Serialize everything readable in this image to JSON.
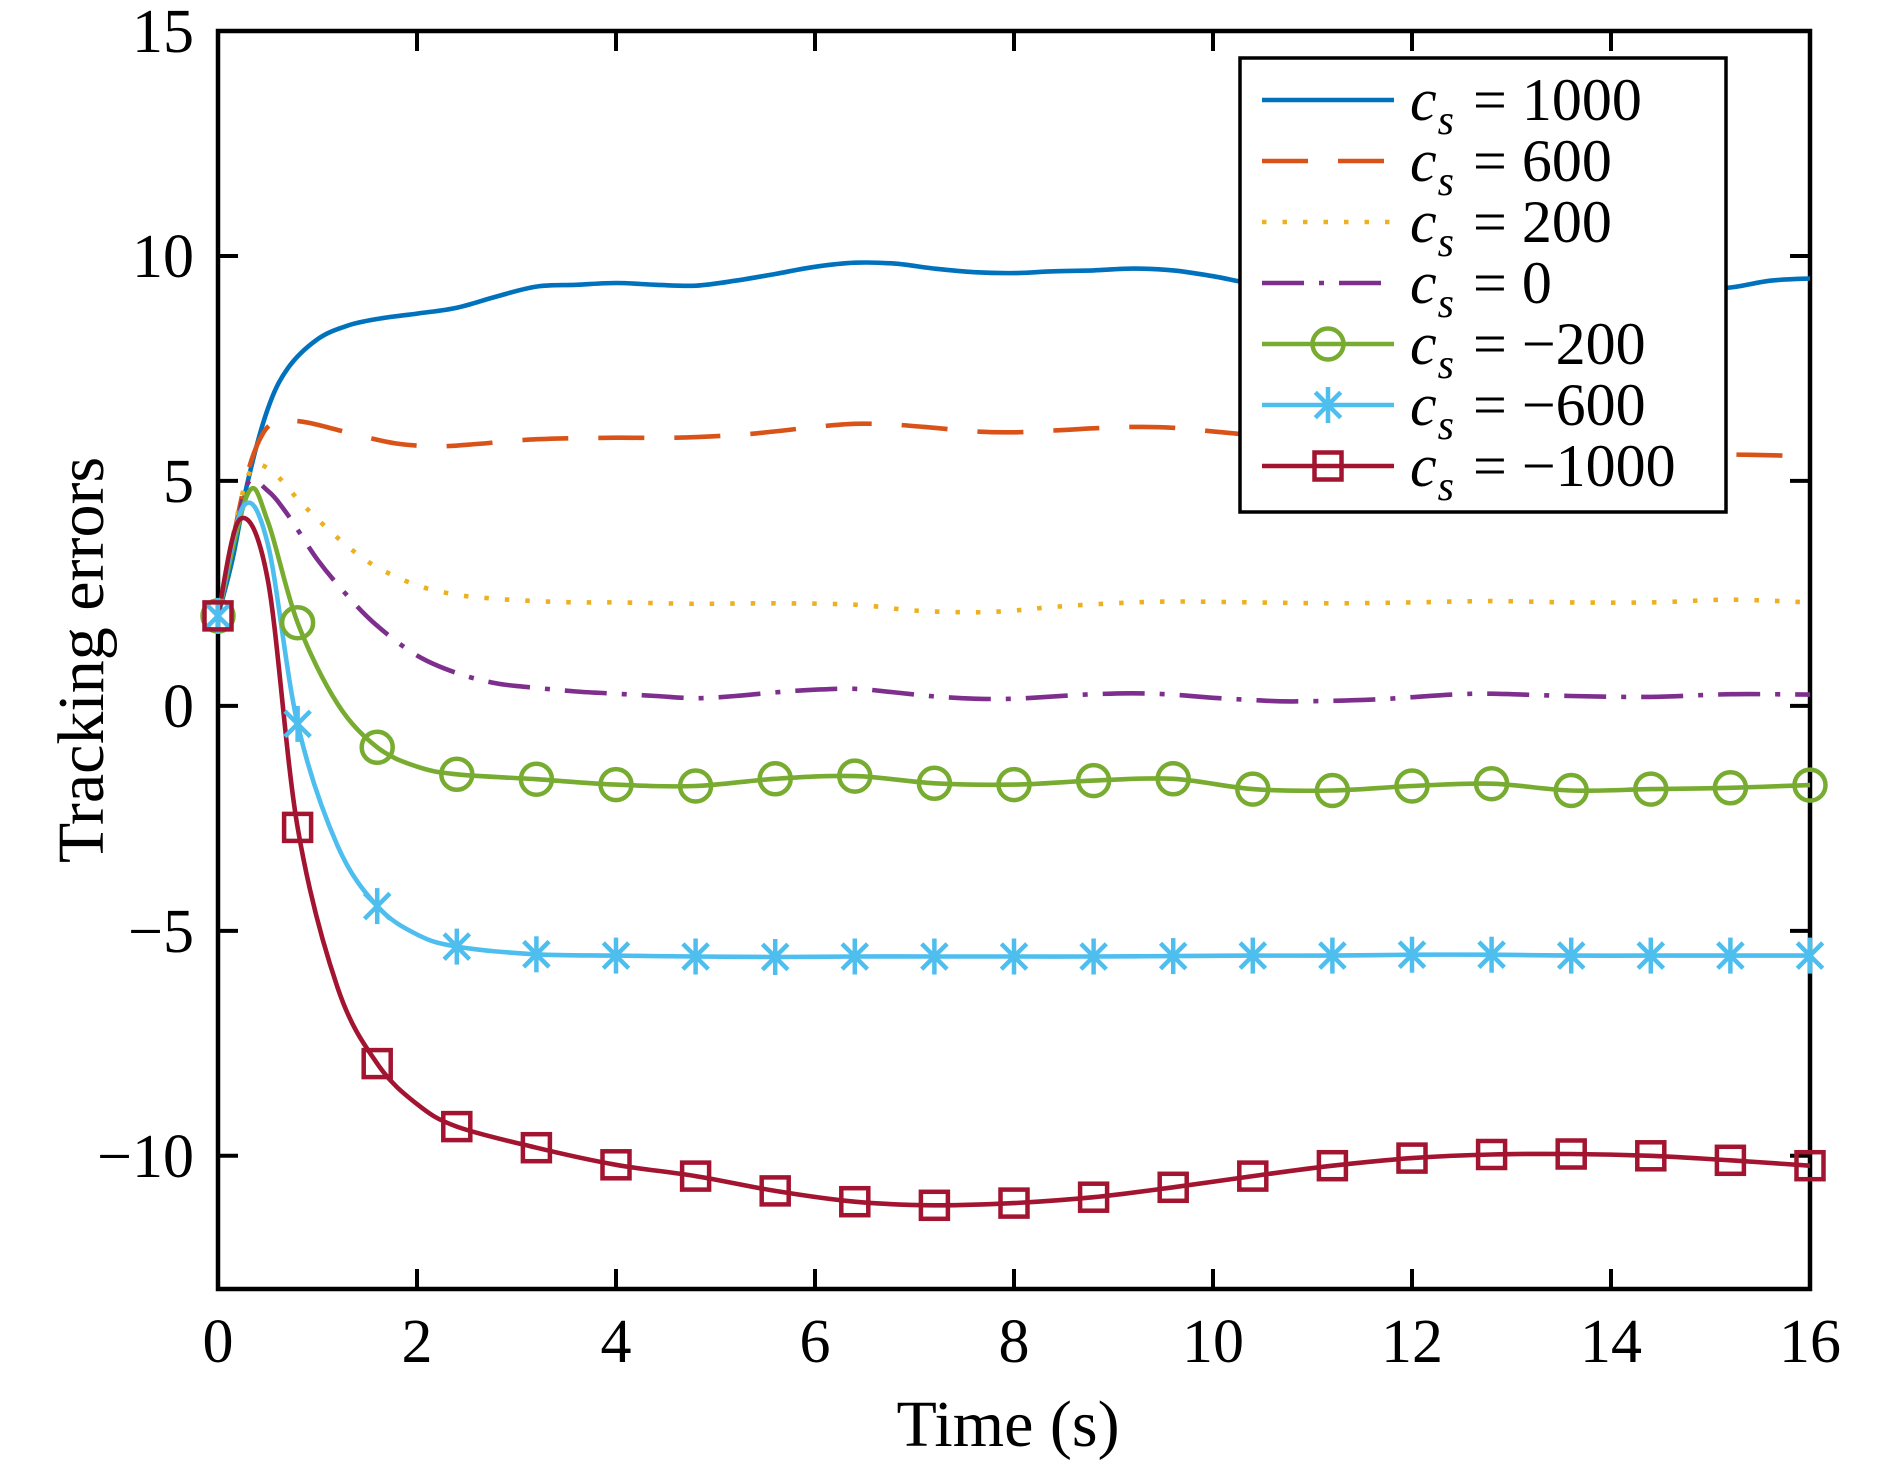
{
  "figure": {
    "background": "#ffffff",
    "axis_color": "#000000",
    "legend_border_color": "#000000",
    "legend_background": "#ffffff"
  },
  "chart_data": {
    "type": "line",
    "title": "",
    "xlabel": "Time (s)",
    "ylabel": "Tracking errors",
    "xlim": [
      0,
      16
    ],
    "ylim": [
      -12.96,
      15
    ],
    "xticks": [
      0,
      2,
      4,
      6,
      8,
      10,
      12,
      14,
      16
    ],
    "xtick_labels": [
      "0",
      "2",
      "4",
      "6",
      "8",
      "10",
      "12",
      "14",
      "16"
    ],
    "yticks": [
      15,
      10,
      5,
      0,
      -5,
      -10
    ],
    "ytick_labels": [
      "15",
      "10",
      "5",
      "0",
      "−5",
      "−10"
    ],
    "grid": false,
    "legend_position": "top-right",
    "marker_interval_s": 0.8,
    "initial_value": 2,
    "series": [
      {
        "id": "cs1000",
        "name": "c_s = 1000",
        "cs": 1000,
        "value_label": "1000",
        "color": "#0072BD",
        "linestyle": "solid",
        "marker": "none",
        "points": [
          [
            0,
            2
          ],
          [
            0.15,
            3.3
          ],
          [
            0.3,
            5.0
          ],
          [
            0.5,
            6.6
          ],
          [
            0.7,
            7.5
          ],
          [
            1,
            8.15
          ],
          [
            1.3,
            8.45
          ],
          [
            1.6,
            8.6
          ],
          [
            2,
            8.72
          ],
          [
            2.4,
            8.85
          ],
          [
            2.8,
            9.1
          ],
          [
            3.2,
            9.32
          ],
          [
            3.6,
            9.36
          ],
          [
            4,
            9.4
          ],
          [
            4.4,
            9.36
          ],
          [
            4.8,
            9.34
          ],
          [
            5.2,
            9.45
          ],
          [
            5.6,
            9.6
          ],
          [
            6,
            9.76
          ],
          [
            6.4,
            9.85
          ],
          [
            6.8,
            9.83
          ],
          [
            7.2,
            9.72
          ],
          [
            7.6,
            9.64
          ],
          [
            8,
            9.62
          ],
          [
            8.4,
            9.66
          ],
          [
            8.8,
            9.68
          ],
          [
            9.2,
            9.72
          ],
          [
            9.6,
            9.68
          ],
          [
            10,
            9.55
          ],
          [
            10.4,
            9.38
          ],
          [
            10.8,
            9.27
          ],
          [
            11.6,
            9.25
          ],
          [
            12.8,
            9.3
          ],
          [
            14,
            9.35
          ],
          [
            14.8,
            9.28
          ],
          [
            15.2,
            9.3
          ],
          [
            15.6,
            9.45
          ],
          [
            16,
            9.5
          ]
        ]
      },
      {
        "id": "cs600",
        "name": "c_s = 600",
        "cs": 600,
        "value_label": "600",
        "color": "#D95319",
        "linestyle": "dashed",
        "marker": "none",
        "points": [
          [
            0,
            2
          ],
          [
            0.15,
            3.7
          ],
          [
            0.3,
            5.2
          ],
          [
            0.45,
            6.05
          ],
          [
            0.6,
            6.33
          ],
          [
            0.8,
            6.33
          ],
          [
            1,
            6.25
          ],
          [
            1.4,
            6.02
          ],
          [
            1.8,
            5.83
          ],
          [
            2.2,
            5.77
          ],
          [
            2.6,
            5.82
          ],
          [
            3,
            5.9
          ],
          [
            3.4,
            5.94
          ],
          [
            4,
            5.96
          ],
          [
            4.6,
            5.96
          ],
          [
            5.2,
            6.02
          ],
          [
            5.6,
            6.1
          ],
          [
            6,
            6.2
          ],
          [
            6.4,
            6.27
          ],
          [
            6.8,
            6.25
          ],
          [
            7.2,
            6.18
          ],
          [
            7.6,
            6.1
          ],
          [
            8,
            6.08
          ],
          [
            8.4,
            6.12
          ],
          [
            8.8,
            6.17
          ],
          [
            9.2,
            6.2
          ],
          [
            9.6,
            6.18
          ],
          [
            10,
            6.1
          ],
          [
            10.4,
            6.02
          ],
          [
            11.2,
            5.9
          ],
          [
            12.4,
            5.75
          ],
          [
            13.6,
            5.65
          ],
          [
            14.8,
            5.6
          ],
          [
            15.4,
            5.58
          ],
          [
            16,
            5.55
          ]
        ]
      },
      {
        "id": "cs200",
        "name": "c_s = 200",
        "cs": 200,
        "value_label": "200",
        "color": "#EDB120",
        "linestyle": "dotted",
        "marker": "none",
        "points": [
          [
            0,
            2
          ],
          [
            0.2,
            4.3
          ],
          [
            0.35,
            5.3
          ],
          [
            0.55,
            5.2
          ],
          [
            0.8,
            4.6
          ],
          [
            1,
            4.15
          ],
          [
            1.3,
            3.55
          ],
          [
            1.6,
            3.08
          ],
          [
            2,
            2.68
          ],
          [
            2.4,
            2.47
          ],
          [
            2.8,
            2.38
          ],
          [
            3.2,
            2.33
          ],
          [
            3.6,
            2.3
          ],
          [
            4,
            2.3
          ],
          [
            4.8,
            2.27
          ],
          [
            5.6,
            2.28
          ],
          [
            6.4,
            2.25
          ],
          [
            7,
            2.12
          ],
          [
            7.6,
            2.08
          ],
          [
            8,
            2.12
          ],
          [
            8.4,
            2.2
          ],
          [
            9,
            2.28
          ],
          [
            9.6,
            2.32
          ],
          [
            10.4,
            2.3
          ],
          [
            11.2,
            2.28
          ],
          [
            12,
            2.3
          ],
          [
            12.8,
            2.33
          ],
          [
            13.6,
            2.3
          ],
          [
            14.4,
            2.3
          ],
          [
            15.2,
            2.36
          ],
          [
            16,
            2.3
          ]
        ]
      },
      {
        "id": "cs0",
        "name": "c_s = 0",
        "cs": 0,
        "value_label": "0",
        "color": "#7E2F8E",
        "linestyle": "dashdot",
        "marker": "none",
        "points": [
          [
            0,
            2
          ],
          [
            0.15,
            3.5
          ],
          [
            0.3,
            4.95
          ],
          [
            0.5,
            4.78
          ],
          [
            0.7,
            4.25
          ],
          [
            1,
            3.25
          ],
          [
            1.3,
            2.45
          ],
          [
            1.6,
            1.78
          ],
          [
            2,
            1.12
          ],
          [
            2.4,
            0.73
          ],
          [
            2.8,
            0.5
          ],
          [
            3.2,
            0.4
          ],
          [
            3.6,
            0.32
          ],
          [
            4,
            0.27
          ],
          [
            4.4,
            0.22
          ],
          [
            4.8,
            0.17
          ],
          [
            5.2,
            0.22
          ],
          [
            5.6,
            0.3
          ],
          [
            6,
            0.36
          ],
          [
            6.4,
            0.38
          ],
          [
            6.8,
            0.3
          ],
          [
            7.2,
            0.21
          ],
          [
            7.6,
            0.16
          ],
          [
            8,
            0.16
          ],
          [
            8.4,
            0.21
          ],
          [
            8.8,
            0.26
          ],
          [
            9.2,
            0.28
          ],
          [
            9.6,
            0.25
          ],
          [
            10,
            0.18
          ],
          [
            10.4,
            0.13
          ],
          [
            10.8,
            0.1
          ],
          [
            11.6,
            0.14
          ],
          [
            12.4,
            0.25
          ],
          [
            12.8,
            0.27
          ],
          [
            13.6,
            0.22
          ],
          [
            14.4,
            0.2
          ],
          [
            15.2,
            0.26
          ],
          [
            16,
            0.25
          ]
        ]
      },
      {
        "id": "csm200",
        "name": "c_s = −200",
        "cs": -200,
        "value_label": "−200",
        "color": "#77AC30",
        "linestyle": "solid",
        "marker": "circle",
        "points": [
          [
            0,
            2
          ],
          [
            0.3,
            4.72
          ],
          [
            0.5,
            4.1
          ],
          [
            0.8,
            1.85
          ],
          [
            1.2,
            0.05
          ],
          [
            1.6,
            -0.92
          ],
          [
            2,
            -1.35
          ],
          [
            2.4,
            -1.52
          ],
          [
            3.2,
            -1.63
          ],
          [
            4,
            -1.75
          ],
          [
            4.8,
            -1.78
          ],
          [
            5.6,
            -1.62
          ],
          [
            6.4,
            -1.56
          ],
          [
            7.2,
            -1.72
          ],
          [
            8,
            -1.75
          ],
          [
            8.8,
            -1.66
          ],
          [
            9.6,
            -1.62
          ],
          [
            10.4,
            -1.85
          ],
          [
            11.2,
            -1.88
          ],
          [
            12,
            -1.78
          ],
          [
            12.8,
            -1.73
          ],
          [
            13.6,
            -1.88
          ],
          [
            14.4,
            -1.85
          ],
          [
            15.2,
            -1.82
          ],
          [
            16,
            -1.76
          ]
        ]
      },
      {
        "id": "csm600",
        "name": "c_s = −600",
        "cs": -600,
        "value_label": "−600",
        "color": "#4DBEEE",
        "linestyle": "solid",
        "marker": "asterisk",
        "points": [
          [
            0,
            2
          ],
          [
            0.25,
            4.42
          ],
          [
            0.5,
            3.6
          ],
          [
            0.8,
            -0.4
          ],
          [
            1.2,
            -3.1
          ],
          [
            1.6,
            -4.45
          ],
          [
            2,
            -5.08
          ],
          [
            2.4,
            -5.35
          ],
          [
            3.2,
            -5.52
          ],
          [
            4,
            -5.55
          ],
          [
            4.8,
            -5.57
          ],
          [
            5.6,
            -5.58
          ],
          [
            6.4,
            -5.57
          ],
          [
            7.2,
            -5.57
          ],
          [
            8,
            -5.57
          ],
          [
            8.8,
            -5.57
          ],
          [
            9.6,
            -5.56
          ],
          [
            10.4,
            -5.55
          ],
          [
            11.2,
            -5.55
          ],
          [
            12,
            -5.53
          ],
          [
            12.8,
            -5.53
          ],
          [
            13.6,
            -5.55
          ],
          [
            14.4,
            -5.55
          ],
          [
            15.2,
            -5.55
          ],
          [
            16,
            -5.55
          ]
        ]
      },
      {
        "id": "csm1000",
        "name": "c_s = −1000",
        "cs": -1000,
        "value_label": "−1000",
        "color": "#A2142F",
        "linestyle": "solid",
        "marker": "square",
        "points": [
          [
            0,
            2
          ],
          [
            0.22,
            4.15
          ],
          [
            0.5,
            2.8
          ],
          [
            0.8,
            -2.7
          ],
          [
            1.2,
            -6.25
          ],
          [
            1.6,
            -7.95
          ],
          [
            2,
            -8.85
          ],
          [
            2.4,
            -9.35
          ],
          [
            3.2,
            -9.82
          ],
          [
            4,
            -10.2
          ],
          [
            4.8,
            -10.45
          ],
          [
            5.6,
            -10.78
          ],
          [
            6.4,
            -11.02
          ],
          [
            7.2,
            -11.1
          ],
          [
            8,
            -11.05
          ],
          [
            8.8,
            -10.92
          ],
          [
            9.6,
            -10.7
          ],
          [
            10.4,
            -10.45
          ],
          [
            11.2,
            -10.22
          ],
          [
            12,
            -10.05
          ],
          [
            12.8,
            -9.97
          ],
          [
            13.6,
            -9.96
          ],
          [
            14.4,
            -10.0
          ],
          [
            15.2,
            -10.1
          ],
          [
            16,
            -10.22
          ]
        ]
      }
    ],
    "legend_label_prefix": "c",
    "legend_label_subscript": "s",
    "legend_label_equals": " = "
  }
}
